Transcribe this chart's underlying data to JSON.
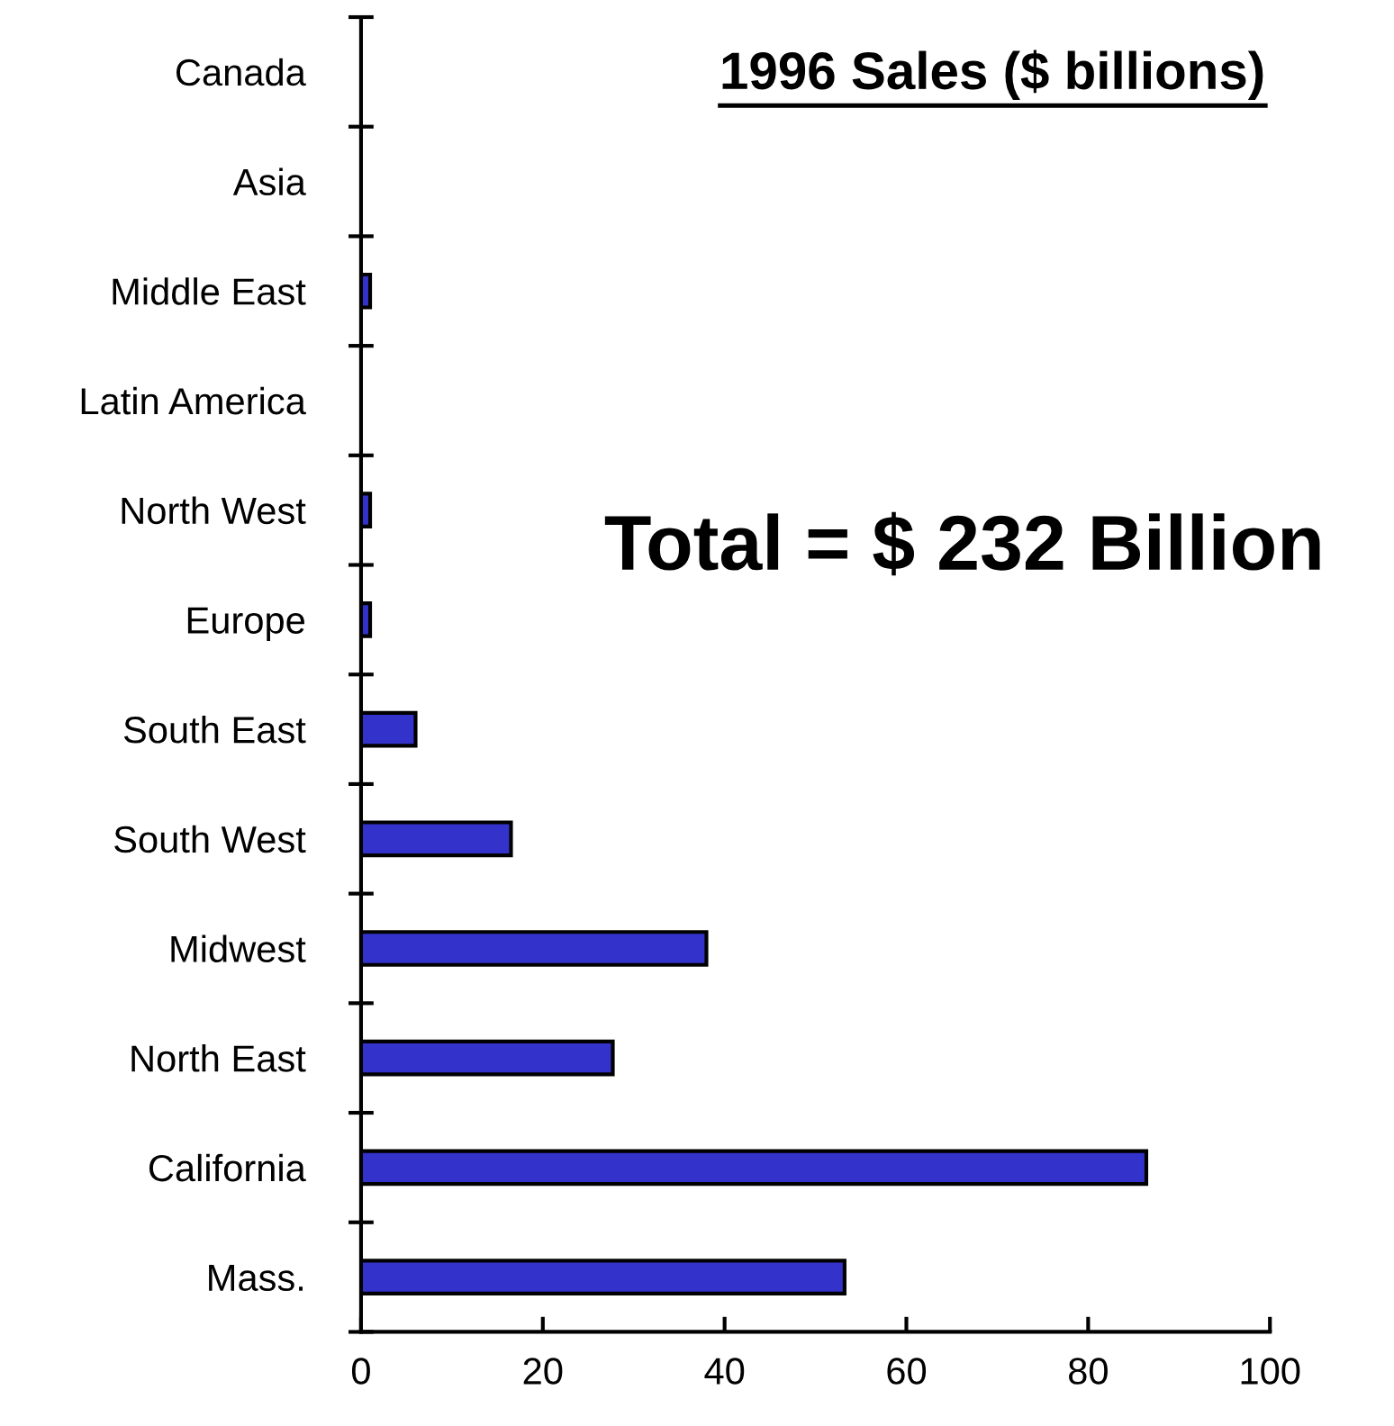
{
  "chart_data": {
    "type": "bar",
    "orientation": "horizontal",
    "title": "1996 Sales ($ billions)",
    "annotations": [
      "Total = $ 232 Billion"
    ],
    "categories": [
      "Canada",
      "Asia",
      "Middle East",
      "Latin America",
      "North West",
      "Europe",
      "South East",
      "South West",
      "Midwest",
      "North East",
      "California",
      "Mass."
    ],
    "values": [
      0,
      0,
      1,
      0,
      1,
      1,
      6,
      16.5,
      38,
      27.7,
      86.4,
      53.2
    ],
    "color": "#3333cc",
    "xlim": [
      0,
      100
    ],
    "xticks": [
      0,
      20,
      40,
      60,
      80,
      100
    ],
    "grid": false,
    "legend": false
  }
}
